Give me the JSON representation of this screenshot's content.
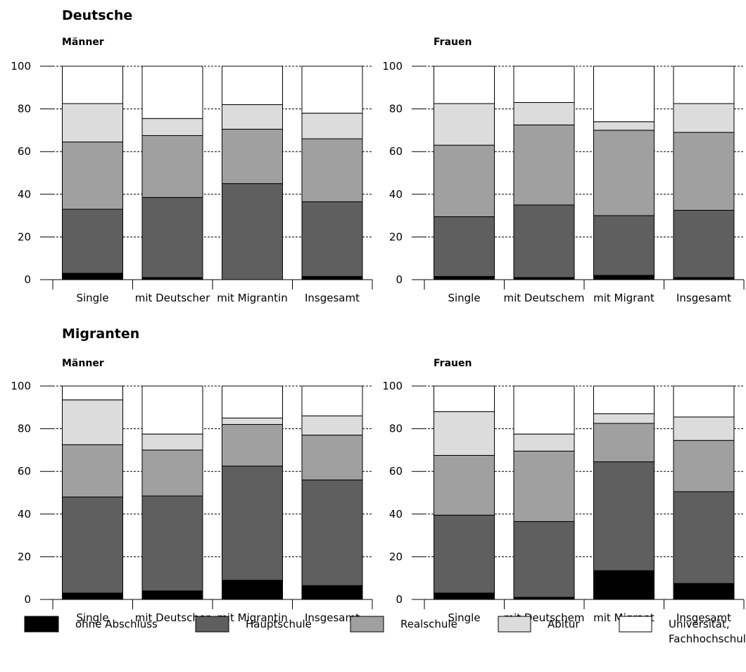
{
  "sections": [
    {
      "title": "Deutsche"
    },
    {
      "title": "Migranten"
    }
  ],
  "legend": [
    {
      "label_lines": [
        "ohne Abschluss"
      ],
      "color": "#000000"
    },
    {
      "label_lines": [
        "Hauptschule"
      ],
      "color": "#5f5f5f"
    },
    {
      "label_lines": [
        "Realschule"
      ],
      "color": "#a0a0a0"
    },
    {
      "label_lines": [
        "Abitur"
      ],
      "color": "#dcdcdc"
    },
    {
      "label_lines": [
        "Universität,",
        "Fachhochschule"
      ],
      "color": "#ffffff"
    }
  ],
  "chart_data": [
    {
      "type": "bar",
      "stacked": true,
      "section": "Deutsche",
      "title": "Männer",
      "categories": [
        "Single",
        "mit Deutscher",
        "mit Migrantin",
        "Insgesamt"
      ],
      "ylim": [
        0,
        100
      ],
      "yticks": [
        0,
        20,
        40,
        60,
        80,
        100
      ],
      "grid": "dashed horizontal",
      "series": [
        {
          "name": "ohne Abschluss",
          "values": [
            3,
            1,
            0,
            1.5
          ]
        },
        {
          "name": "Hauptschule",
          "values": [
            30,
            37.5,
            45,
            35
          ]
        },
        {
          "name": "Realschule",
          "values": [
            31.5,
            29,
            25.5,
            29.5
          ]
        },
        {
          "name": "Abitur",
          "values": [
            18,
            8,
            11.5,
            12
          ]
        },
        {
          "name": "Universität, Fachhochschule",
          "values": [
            17.5,
            24.5,
            18,
            22
          ]
        }
      ]
    },
    {
      "type": "bar",
      "stacked": true,
      "section": "Deutsche",
      "title": "Frauen",
      "categories": [
        "Single",
        "mit Deutschem",
        "mit Migrant",
        "Insgesamt"
      ],
      "ylim": [
        0,
        100
      ],
      "yticks": [
        0,
        20,
        40,
        60,
        80,
        100
      ],
      "grid": "dashed horizontal",
      "series": [
        {
          "name": "ohne Abschluss",
          "values": [
            1.5,
            1,
            2,
            1
          ]
        },
        {
          "name": "Hauptschule",
          "values": [
            28,
            34,
            28,
            31.5
          ]
        },
        {
          "name": "Realschule",
          "values": [
            33.5,
            37.5,
            40,
            36.5
          ]
        },
        {
          "name": "Abitur",
          "values": [
            19.5,
            10.5,
            4,
            13.5
          ]
        },
        {
          "name": "Universität, Fachhochschule",
          "values": [
            17.5,
            17,
            26,
            17.5
          ]
        }
      ]
    },
    {
      "type": "bar",
      "stacked": true,
      "section": "Migranten",
      "title": "Männer",
      "categories": [
        "Single",
        "mit Deutscher",
        "mit Migrantin",
        "Insgesamt"
      ],
      "ylim": [
        0,
        100
      ],
      "yticks": [
        0,
        20,
        40,
        60,
        80,
        100
      ],
      "grid": "dashed horizontal",
      "series": [
        {
          "name": "ohne Abschluss",
          "values": [
            3,
            4,
            9,
            6.5
          ]
        },
        {
          "name": "Hauptschule",
          "values": [
            45,
            44.5,
            53.5,
            49.5
          ]
        },
        {
          "name": "Realschule",
          "values": [
            24.5,
            21.5,
            19.5,
            21
          ]
        },
        {
          "name": "Abitur",
          "values": [
            21,
            7.5,
            3,
            9
          ]
        },
        {
          "name": "Universität, Fachhochschule",
          "values": [
            6.5,
            22.5,
            15,
            14
          ]
        }
      ]
    },
    {
      "type": "bar",
      "stacked": true,
      "section": "Migranten",
      "title": "Frauen",
      "categories": [
        "Single",
        "mit Deutschem",
        "mit Migrant",
        "Insgesamt"
      ],
      "ylim": [
        0,
        100
      ],
      "yticks": [
        0,
        20,
        40,
        60,
        80,
        100
      ],
      "grid": "dashed horizontal",
      "series": [
        {
          "name": "ohne Abschluss",
          "values": [
            3,
            1,
            13.5,
            7.5
          ]
        },
        {
          "name": "Hauptschule",
          "values": [
            36.5,
            35.5,
            51,
            43
          ]
        },
        {
          "name": "Realschule",
          "values": [
            28,
            33,
            18,
            24
          ]
        },
        {
          "name": "Abitur",
          "values": [
            20.5,
            8,
            4.5,
            11
          ]
        },
        {
          "name": "Universität, Fachhochschule",
          "values": [
            12,
            22.5,
            13,
            14.5
          ]
        }
      ]
    }
  ]
}
